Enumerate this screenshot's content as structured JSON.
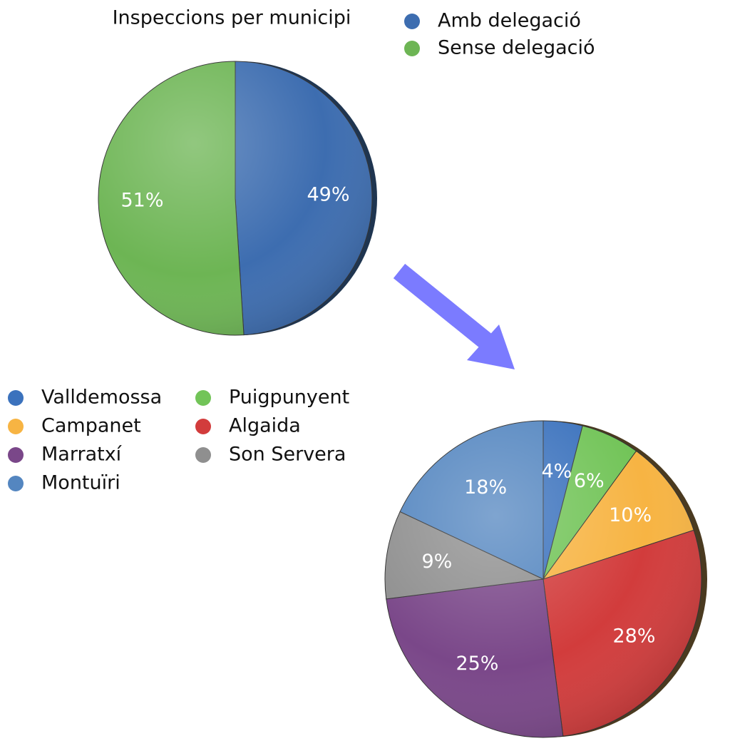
{
  "chart_data": [
    {
      "type": "pie",
      "title": "Inspeccions per municipi",
      "categories": [
        "Amb delegació",
        "Sense delegació"
      ],
      "values": [
        49,
        51
      ],
      "value_labels": [
        "49%",
        "51%"
      ],
      "colors": [
        "#3d6db0",
        "#6db554"
      ]
    },
    {
      "type": "pie",
      "categories": [
        "Valldemossa",
        "Puigpunyent",
        "Campanet",
        "Algaida",
        "Marratxí",
        "Son Servera",
        "Montuïri"
      ],
      "values": [
        4,
        6,
        10,
        28,
        25,
        9,
        18
      ],
      "value_labels": [
        "4%",
        "6%",
        "10%",
        "28%",
        "25%",
        "9%",
        "18%"
      ],
      "colors": [
        "#3b72bd",
        "#72c458",
        "#f7b443",
        "#d23c3c",
        "#7a4789",
        "#8f8f8f",
        "#5486c0"
      ]
    }
  ]
}
